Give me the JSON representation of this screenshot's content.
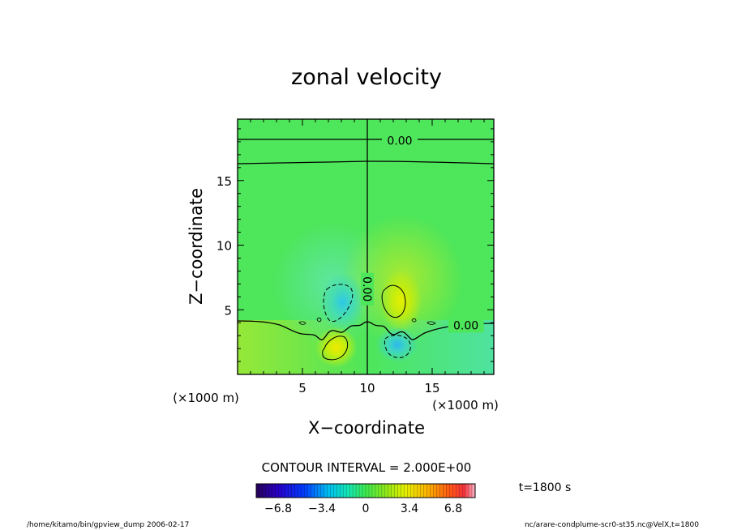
{
  "chart_data": {
    "type": "heatmap",
    "title": "zonal velocity",
    "xlabel": "X−coordinate",
    "ylabel": "Z−coordinate",
    "x_unit": "(×1000 m)",
    "y_unit": "(×1000 m)",
    "xlim": [
      0,
      19.75
    ],
    "ylim": [
      0,
      19.75
    ],
    "x_ticks": [
      5,
      10,
      15
    ],
    "x_tick_labels": [
      "5",
      "10",
      "15"
    ],
    "y_ticks": [
      5,
      10,
      15
    ],
    "y_tick_labels": [
      "5",
      "10",
      "15"
    ],
    "contour_labels": [
      {
        "text": "0.00",
        "x": 12.5,
        "y": 18.1
      },
      {
        "text": "0.00",
        "x": 17.6,
        "y": 3.8
      },
      {
        "text": "0.00",
        "x": 10.0,
        "y": 6.6
      }
    ],
    "contour_interval_text": "CONTOUR INTERVAL = 2.000E+00",
    "time_label": "t=1800 s",
    "colorbar": {
      "range": [
        -8.5,
        8.5
      ],
      "ticks": [
        -6.8,
        -3.4,
        0,
        3.4,
        6.8
      ],
      "tick_labels": [
        "−6.8",
        "−3.4",
        "0",
        "3.4",
        "6.8"
      ]
    },
    "features": [
      {
        "x": 8.1,
        "y": 5.6,
        "value": -2.4
      },
      {
        "x": 12.6,
        "y": 5.7,
        "value": 2.4
      },
      {
        "x": 7.6,
        "y": 2.1,
        "value": 2.3
      },
      {
        "x": 12.3,
        "y": 2.3,
        "value": -2.3
      }
    ]
  },
  "footer": {
    "left": "/home/kitamo/bin/gpview_dump  2006-02-17",
    "right": "nc/arare-condplume-scr0-st35.nc@VelX,t=1800"
  }
}
